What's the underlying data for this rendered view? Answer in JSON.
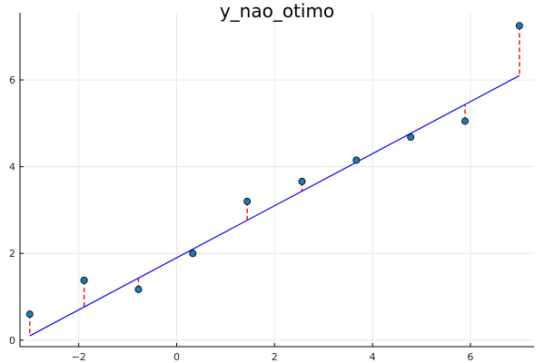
{
  "chart_data": {
    "type": "scatter",
    "title": "y_nao_otimo",
    "xlabel": "",
    "ylabel": "",
    "xlim": [
      -3.2,
      7.3
    ],
    "ylim": [
      -0.15,
      7.55
    ],
    "x_ticks": [
      -2,
      0,
      2,
      4,
      6
    ],
    "y_ticks": [
      0,
      2,
      4,
      6
    ],
    "grid": true,
    "legend": "none",
    "points": {
      "x": [
        -3.0,
        -1.89,
        -0.78,
        0.33,
        1.44,
        2.56,
        3.67,
        4.78,
        5.89,
        7.0
      ],
      "y": [
        0.6,
        1.38,
        1.17,
        2.0,
        3.2,
        3.66,
        4.15,
        4.68,
        5.05,
        7.25
      ],
      "color": "#1f77b4"
    },
    "fit_line": {
      "x": [
        -3.0,
        7.0
      ],
      "y": [
        0.1,
        6.1
      ],
      "color": "#0000ff"
    },
    "residuals": {
      "color": "#ff0000",
      "style": "dashed"
    }
  }
}
